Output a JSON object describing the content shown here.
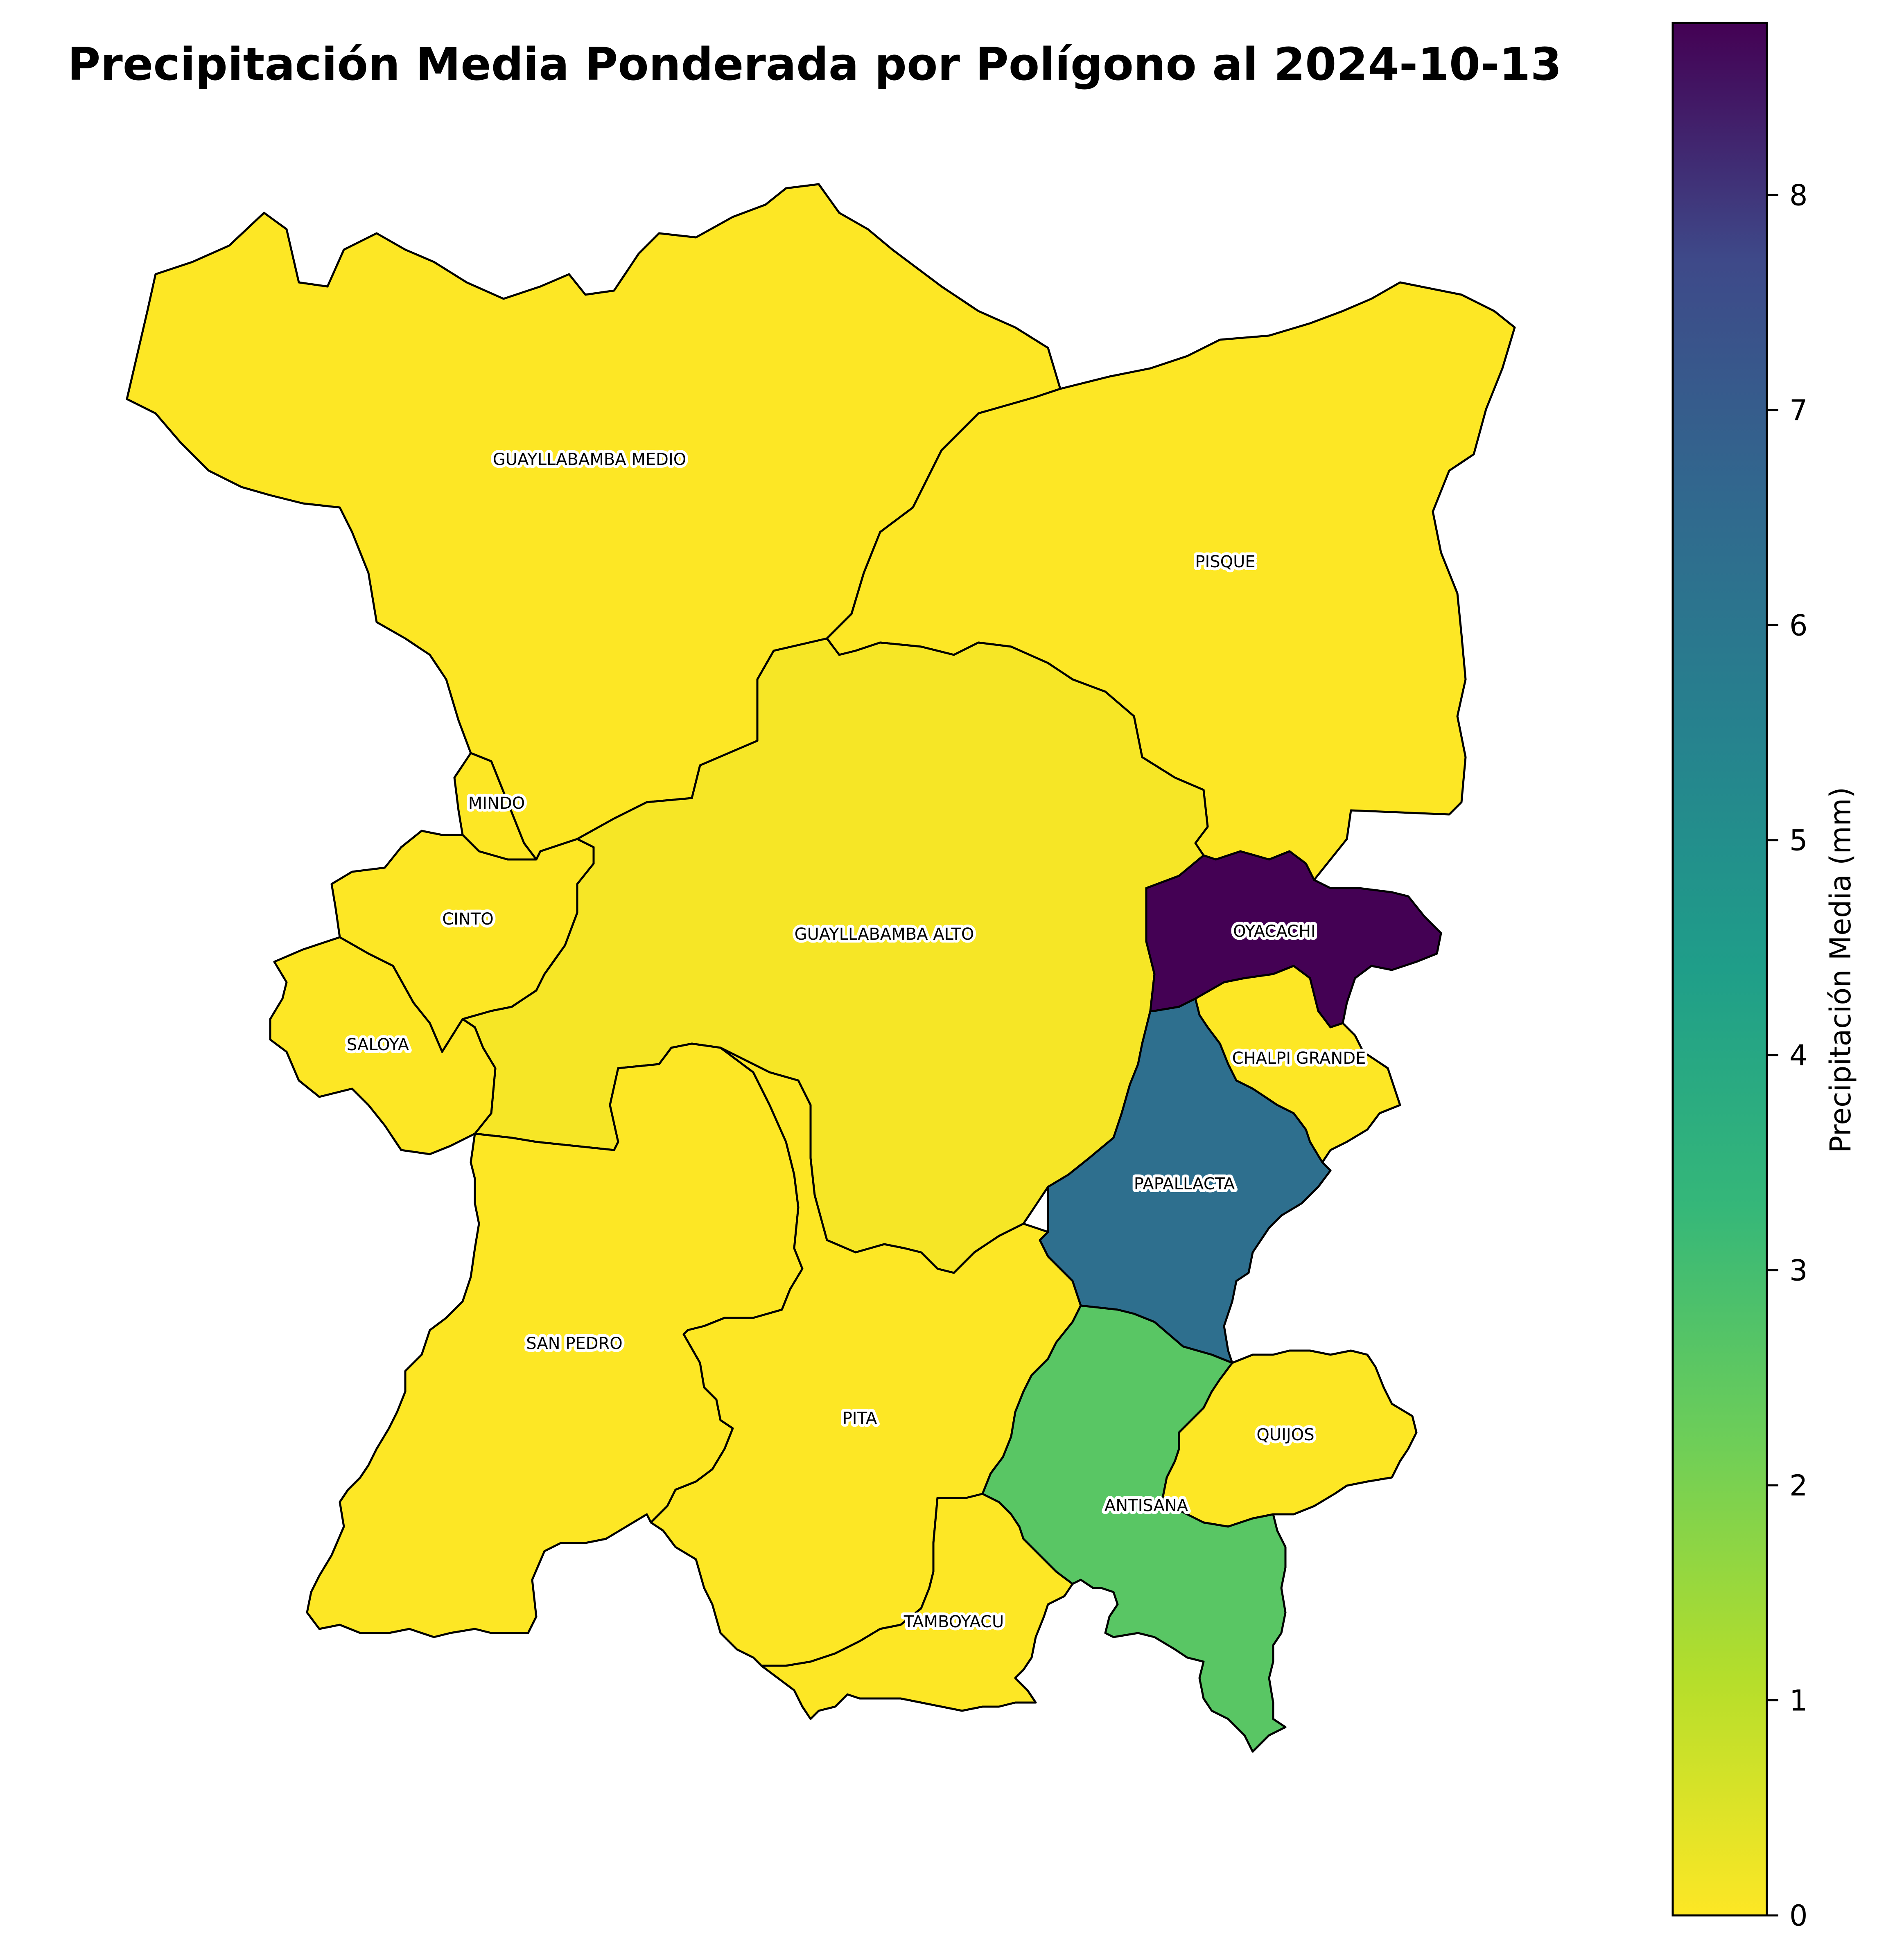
{
  "map": {
    "title": "Precipitación Media Ponderada por Polígono al 2024-10-13",
    "regions": [
      {
        "name": "GUAYLLABAMBA MEDIO",
        "precip_mm": 0.0
      },
      {
        "name": "PISQUE",
        "precip_mm": 0.0
      },
      {
        "name": "GUAYLLABAMBA ALTO",
        "precip_mm": 0.1
      },
      {
        "name": "MINDO",
        "precip_mm": 0.0
      },
      {
        "name": "CINTO",
        "precip_mm": 0.0
      },
      {
        "name": "SALOYA",
        "precip_mm": 0.0
      },
      {
        "name": "OYACACHI",
        "precip_mm": 8.8
      },
      {
        "name": "CHALPI GRANDE",
        "precip_mm": 0.0
      },
      {
        "name": "PAPALLACTA",
        "precip_mm": 6.3
      },
      {
        "name": "SAN PEDRO",
        "precip_mm": 0.0
      },
      {
        "name": "PITA",
        "precip_mm": 0.0
      },
      {
        "name": "QUIJOS",
        "precip_mm": 0.0
      },
      {
        "name": "ANTISANA",
        "precip_mm": 2.6
      },
      {
        "name": "TAMBOYACU",
        "precip_mm": 0.0
      }
    ]
  },
  "colorbar": {
    "label": "Precipitación Media (mm)",
    "min": 0,
    "max": 8.8,
    "colormap": "viridis_r",
    "ticks": [
      "0",
      "1",
      "2",
      "3",
      "4",
      "5",
      "6",
      "7",
      "8"
    ]
  }
}
